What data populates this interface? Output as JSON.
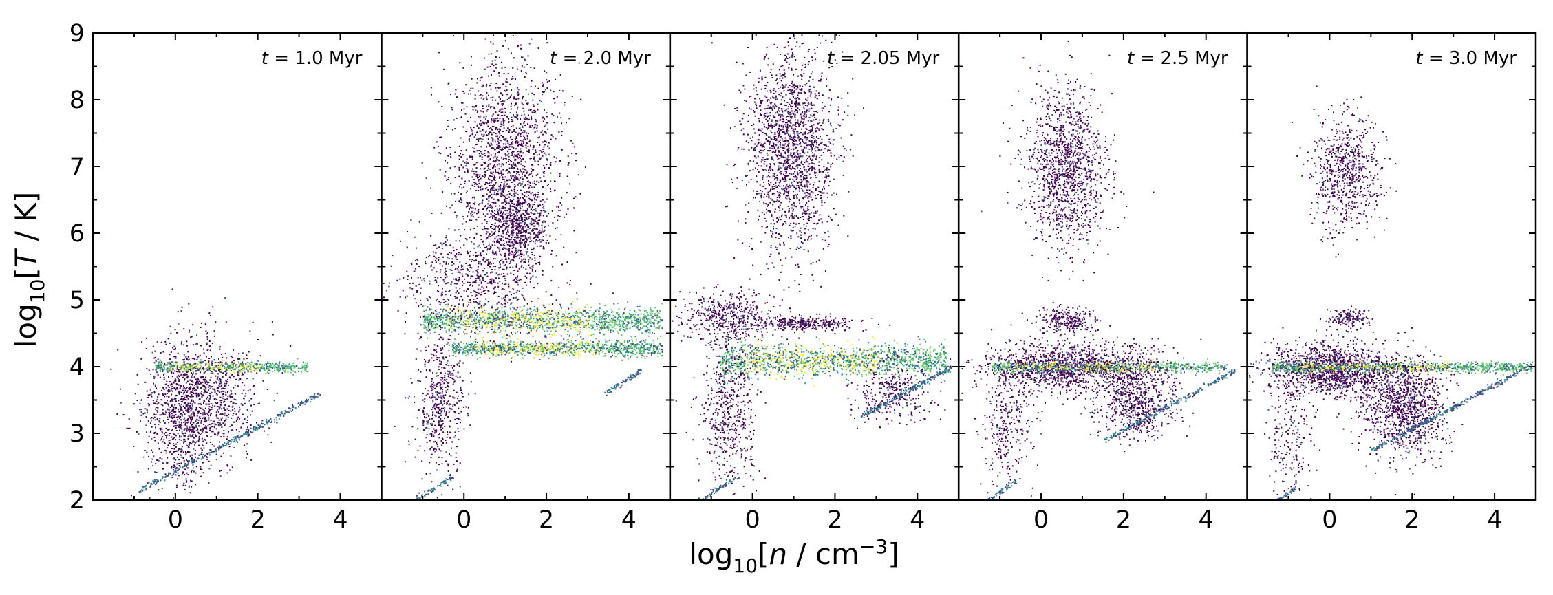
{
  "chart_data": {
    "type": "scatter",
    "description_kind": "2D density phase diagram (5 panels, shared axes)",
    "xlabel": {
      "pre": "log",
      "sub": "10",
      "open": "[",
      "var": "n",
      "unit": " / cm",
      "sup": "−3",
      "close": "]"
    },
    "ylabel": {
      "pre": "log",
      "sub": "10",
      "open": "[",
      "var": "T",
      "unit": " / K",
      "close": "]"
    },
    "xlim": [
      -2,
      5
    ],
    "ylim": [
      2,
      9
    ],
    "x_ticks": [
      0,
      2,
      4
    ],
    "y_ticks": [
      2,
      3,
      4,
      5,
      6,
      7,
      8,
      9
    ],
    "grid": false,
    "colormap": [
      "#440154",
      "#3b528b",
      "#21918c",
      "#5ec962",
      "#fde725"
    ],
    "panels": [
      {
        "annotation": {
          "var": "t",
          "text": " = 1.0 Myr"
        },
        "regions": [
          {
            "kind": "blob",
            "cx": 0.6,
            "cy": 3.6,
            "sx": 0.7,
            "sy": 0.45,
            "n": 1100
          },
          {
            "kind": "blob",
            "cx": 0.1,
            "cy": 3.0,
            "sx": 0.4,
            "sy": 0.5,
            "n": 500
          },
          {
            "kind": "stripe",
            "x0": -0.5,
            "x1": 3.2,
            "y": 4.0,
            "h": 0.04,
            "n": 500,
            "hot": true
          },
          {
            "kind": "line",
            "x0": -0.9,
            "y0": 2.15,
            "x1": 3.5,
            "y1": 3.6,
            "n": 300
          }
        ]
      },
      {
        "annotation": {
          "var": "t",
          "text": " = 2.0 Myr"
        },
        "regions": [
          {
            "kind": "blob",
            "cx": 1.0,
            "cy": 7.0,
            "sx": 0.65,
            "sy": 0.85,
            "n": 1800
          },
          {
            "kind": "blob",
            "cx": 1.3,
            "cy": 6.1,
            "sx": 0.35,
            "sy": 0.25,
            "n": 500
          },
          {
            "kind": "blob",
            "cx": 0.2,
            "cy": 5.3,
            "sx": 0.9,
            "sy": 0.35,
            "n": 600
          },
          {
            "kind": "stripe",
            "x0": -1.0,
            "x1": 4.8,
            "y": 4.7,
            "h": 0.1,
            "n": 1400,
            "hot": true
          },
          {
            "kind": "stripe",
            "x0": -0.3,
            "x1": 4.8,
            "y": 4.28,
            "h": 0.06,
            "n": 1000,
            "hot": true
          },
          {
            "kind": "blob",
            "cx": -0.6,
            "cy": 3.5,
            "sx": 0.3,
            "sy": 0.5,
            "n": 500
          },
          {
            "kind": "line",
            "x0": -1.2,
            "y0": 2.0,
            "x1": -0.3,
            "y1": 2.35,
            "n": 60
          },
          {
            "kind": "line",
            "x0": 3.4,
            "y0": 3.6,
            "x1": 4.3,
            "y1": 3.95,
            "n": 80
          }
        ]
      },
      {
        "annotation": {
          "var": "t",
          "text": " = 2.05 Myr"
        },
        "regions": [
          {
            "kind": "blob",
            "cx": 0.9,
            "cy": 7.3,
            "sx": 0.55,
            "sy": 0.75,
            "n": 1800
          },
          {
            "kind": "blob",
            "cx": -0.6,
            "cy": 4.75,
            "sx": 0.6,
            "sy": 0.2,
            "n": 500
          },
          {
            "kind": "blob",
            "cx": 1.3,
            "cy": 4.65,
            "sx": 0.6,
            "sy": 0.06,
            "n": 300
          },
          {
            "kind": "stripe",
            "x0": -0.8,
            "x1": 4.7,
            "y": 4.1,
            "h": 0.12,
            "n": 1400,
            "hot": true
          },
          {
            "kind": "blob",
            "cx": -0.6,
            "cy": 3.3,
            "sx": 0.35,
            "sy": 0.55,
            "n": 500
          },
          {
            "kind": "blob",
            "cx": 3.4,
            "cy": 3.6,
            "sx": 0.5,
            "sy": 0.25,
            "n": 300
          },
          {
            "kind": "line",
            "x0": 2.6,
            "y0": 3.25,
            "x1": 4.8,
            "y1": 4.0,
            "n": 200
          },
          {
            "kind": "line",
            "x0": -1.3,
            "y0": 2.0,
            "x1": -0.4,
            "y1": 2.35,
            "n": 60
          }
        ]
      },
      {
        "annotation": {
          "var": "t",
          "text": " = 2.5 Myr"
        },
        "regions": [
          {
            "kind": "blob",
            "cx": 0.6,
            "cy": 7.0,
            "sx": 0.5,
            "sy": 0.6,
            "n": 1300
          },
          {
            "kind": "blob",
            "cx": 0.6,
            "cy": 4.7,
            "sx": 0.35,
            "sy": 0.1,
            "n": 250
          },
          {
            "kind": "blob",
            "cx": 0.6,
            "cy": 4.0,
            "sx": 1.0,
            "sy": 0.18,
            "n": 1300
          },
          {
            "kind": "stripe",
            "x0": -1.2,
            "x1": 4.5,
            "y": 4.0,
            "h": 0.04,
            "n": 700,
            "hot": true
          },
          {
            "kind": "blob",
            "cx": 2.3,
            "cy": 3.5,
            "sx": 0.5,
            "sy": 0.3,
            "n": 700
          },
          {
            "kind": "blob",
            "cx": -0.8,
            "cy": 3.2,
            "sx": 0.3,
            "sy": 0.45,
            "n": 300
          },
          {
            "kind": "line",
            "x0": 1.5,
            "y0": 2.9,
            "x1": 4.7,
            "y1": 3.95,
            "n": 220
          },
          {
            "kind": "line",
            "x0": -1.3,
            "y0": 2.0,
            "x1": -0.6,
            "y1": 2.3,
            "n": 50
          }
        ]
      },
      {
        "annotation": {
          "var": "t",
          "text": " = 3.0 Myr"
        },
        "regions": [
          {
            "kind": "blob",
            "cx": 0.4,
            "cy": 6.9,
            "sx": 0.4,
            "sy": 0.45,
            "n": 700
          },
          {
            "kind": "blob",
            "cx": 0.5,
            "cy": 4.72,
            "sx": 0.25,
            "sy": 0.08,
            "n": 150
          },
          {
            "kind": "blob",
            "cx": 0.0,
            "cy": 3.95,
            "sx": 0.8,
            "sy": 0.2,
            "n": 1300
          },
          {
            "kind": "stripe",
            "x0": -1.4,
            "x1": 4.9,
            "y": 4.0,
            "h": 0.04,
            "n": 900,
            "hot": true
          },
          {
            "kind": "blob",
            "cx": 1.8,
            "cy": 3.4,
            "sx": 0.5,
            "sy": 0.35,
            "n": 1100
          },
          {
            "kind": "blob",
            "cx": -1.0,
            "cy": 3.0,
            "sx": 0.3,
            "sy": 0.5,
            "n": 200
          },
          {
            "kind": "line",
            "x0": 1.0,
            "y0": 2.75,
            "x1": 4.8,
            "y1": 4.0,
            "n": 300
          },
          {
            "kind": "line",
            "x0": -1.3,
            "y0": 2.0,
            "x1": -0.8,
            "y1": 2.2,
            "n": 40
          }
        ]
      }
    ]
  }
}
